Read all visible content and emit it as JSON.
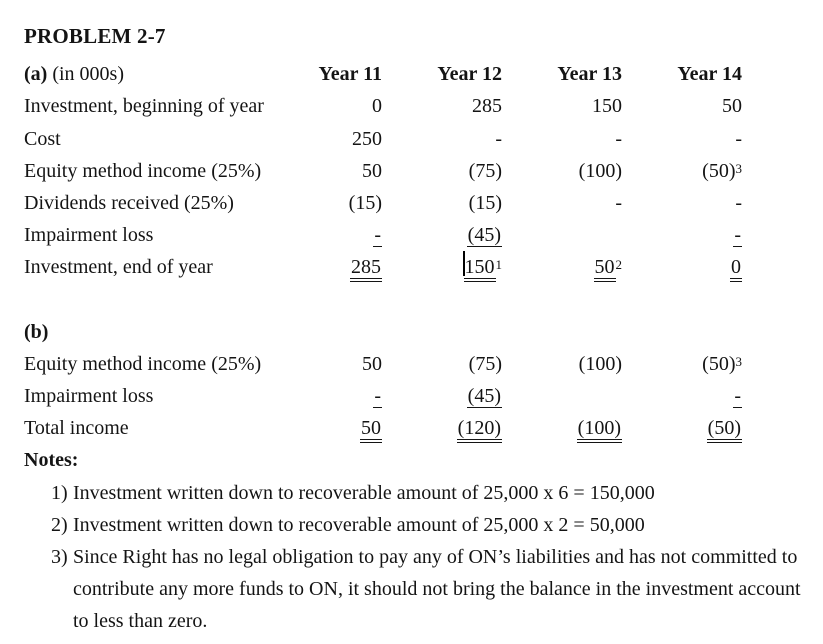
{
  "title": "PROBLEM 2-7",
  "section_a": {
    "label": "(a)",
    "unit": "(in 000s)",
    "columns": [
      "Year 11",
      "Year 12",
      "Year 13",
      "Year 14"
    ],
    "rows": [
      {
        "label": "Investment, beginning of year",
        "cells": [
          {
            "v": "0"
          },
          {
            "v": "285"
          },
          {
            "v": "150"
          },
          {
            "v": "50"
          }
        ]
      },
      {
        "label": "Cost",
        "cells": [
          {
            "v": "250"
          },
          {
            "v": "-"
          },
          {
            "v": "-"
          },
          {
            "v": "-"
          }
        ]
      },
      {
        "label": "Equity method income (25%)",
        "cells": [
          {
            "v": "50"
          },
          {
            "v": "(75)"
          },
          {
            "v": "(100)"
          },
          {
            "v": "(50)",
            "sup": "3"
          }
        ]
      },
      {
        "label": "Dividends received (25%)",
        "cells": [
          {
            "v": "(15)"
          },
          {
            "v": "(15)"
          },
          {
            "v": "-"
          },
          {
            "v": "-"
          }
        ]
      },
      {
        "label": "Impairment loss",
        "cells": [
          {
            "v": "-",
            "underline": "single"
          },
          {
            "v": "(45)",
            "underline": "single"
          },
          {
            "v": ""
          },
          {
            "v": "-",
            "underline": "single"
          }
        ]
      },
      {
        "label": "Investment, end of year",
        "cells": [
          {
            "v": "285",
            "underline": "double"
          },
          {
            "v": "150",
            "underline": "double",
            "sup": "1",
            "caret": true
          },
          {
            "v": "50",
            "underline": "double",
            "sup": "2"
          },
          {
            "v": "0",
            "underline": "double"
          }
        ]
      }
    ]
  },
  "section_b": {
    "label": "(b)",
    "rows": [
      {
        "label": "Equity method income (25%)",
        "cells": [
          {
            "v": "50"
          },
          {
            "v": "(75)"
          },
          {
            "v": "(100)"
          },
          {
            "v": "(50)",
            "sup": "3"
          }
        ]
      },
      {
        "label": "Impairment loss",
        "cells": [
          {
            "v": "-",
            "underline": "single"
          },
          {
            "v": "(45)",
            "underline": "single"
          },
          {
            "v": ""
          },
          {
            "v": "-",
            "underline": "single"
          }
        ]
      },
      {
        "label": "Total income",
        "cells": [
          {
            "v": "50",
            "underline": "double"
          },
          {
            "v": "(120)",
            "underline": "double"
          },
          {
            "v": "(100)",
            "underline": "double"
          },
          {
            "v": "(50)",
            "underline": "double"
          }
        ]
      }
    ]
  },
  "notes": {
    "heading": "Notes:",
    "items": [
      {
        "num": "1)",
        "lines": [
          "Investment written down to recoverable amount of 25,000 x 6 = 150,000"
        ]
      },
      {
        "num": "2)",
        "lines": [
          "Investment written down to recoverable amount of 25,000 x 2 = 50,000"
        ]
      },
      {
        "num": "3)",
        "lines": [
          "Since Right has no legal obligation to pay any of ON’s liabilities and has not committed to",
          "contribute any more funds to ON, it should not bring the balance in the investment account",
          "to less than zero."
        ]
      }
    ]
  }
}
